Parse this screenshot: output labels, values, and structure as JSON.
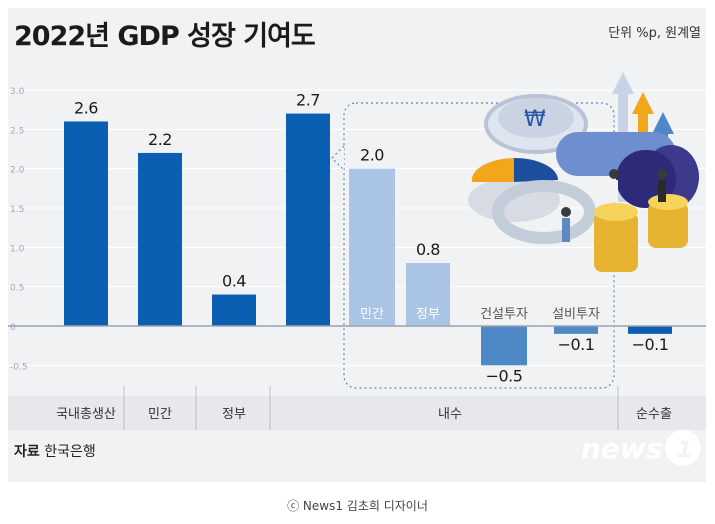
{
  "title": "2022년 GDP 성장 기여도",
  "unit": "단위 %p, 원계열",
  "source_label": "자료",
  "source_value": "한국은행",
  "logo_text": "news1",
  "credit": "ⓒ News1 김초희 디자이너",
  "colors": {
    "background": "#f1f2f4",
    "dark_blue": "#0b5fb3",
    "light_blue": "#a9c4e4",
    "mid_blue": "#4e88c7",
    "axis": "#9aa3ad",
    "dashed_border": "#5b8ab8"
  },
  "chart_data": {
    "type": "bar",
    "ylim": [
      -0.5,
      3.0
    ],
    "ytick_labels": [
      "3.0",
      "2.5",
      "2.0",
      "1.5",
      "1.0",
      "0.5",
      "0",
      "-0.5"
    ],
    "ytick_values": [
      3.0,
      2.5,
      2.0,
      1.5,
      1.0,
      0.5,
      0,
      -0.5
    ],
    "grid": true,
    "bars": [
      {
        "label": "국내총생산",
        "value": 2.6,
        "value_label": "2.6",
        "color": "dark",
        "inside_label": ""
      },
      {
        "label": "민간",
        "value": 2.2,
        "value_label": "2.2",
        "color": "dark",
        "inside_label": ""
      },
      {
        "label": "정부",
        "value": 0.4,
        "value_label": "0.4",
        "color": "dark",
        "inside_label": ""
      },
      {
        "label": "내수",
        "value": 2.7,
        "value_label": "2.7",
        "color": "dark",
        "inside_label": ""
      },
      {
        "label": "민간",
        "value": 2.0,
        "value_label": "2.0",
        "color": "light",
        "inside_label": "민간"
      },
      {
        "label": "정부",
        "value": 0.8,
        "value_label": "0.8",
        "color": "light",
        "inside_label": "정부"
      },
      {
        "label": "건설투자",
        "value": -0.5,
        "value_label": "−0.5",
        "color": "mid",
        "inside_label": "건설투자"
      },
      {
        "label": "설비투자",
        "value": -0.1,
        "value_label": "−0.1",
        "color": "mid",
        "inside_label": "설비투자"
      },
      {
        "label": "순수출",
        "value": -0.1,
        "value_label": "−0.1",
        "color": "dark",
        "inside_label": ""
      }
    ],
    "x_groups": [
      "국내총생산",
      "민간",
      "정부",
      "내수",
      "순수출"
    ]
  }
}
